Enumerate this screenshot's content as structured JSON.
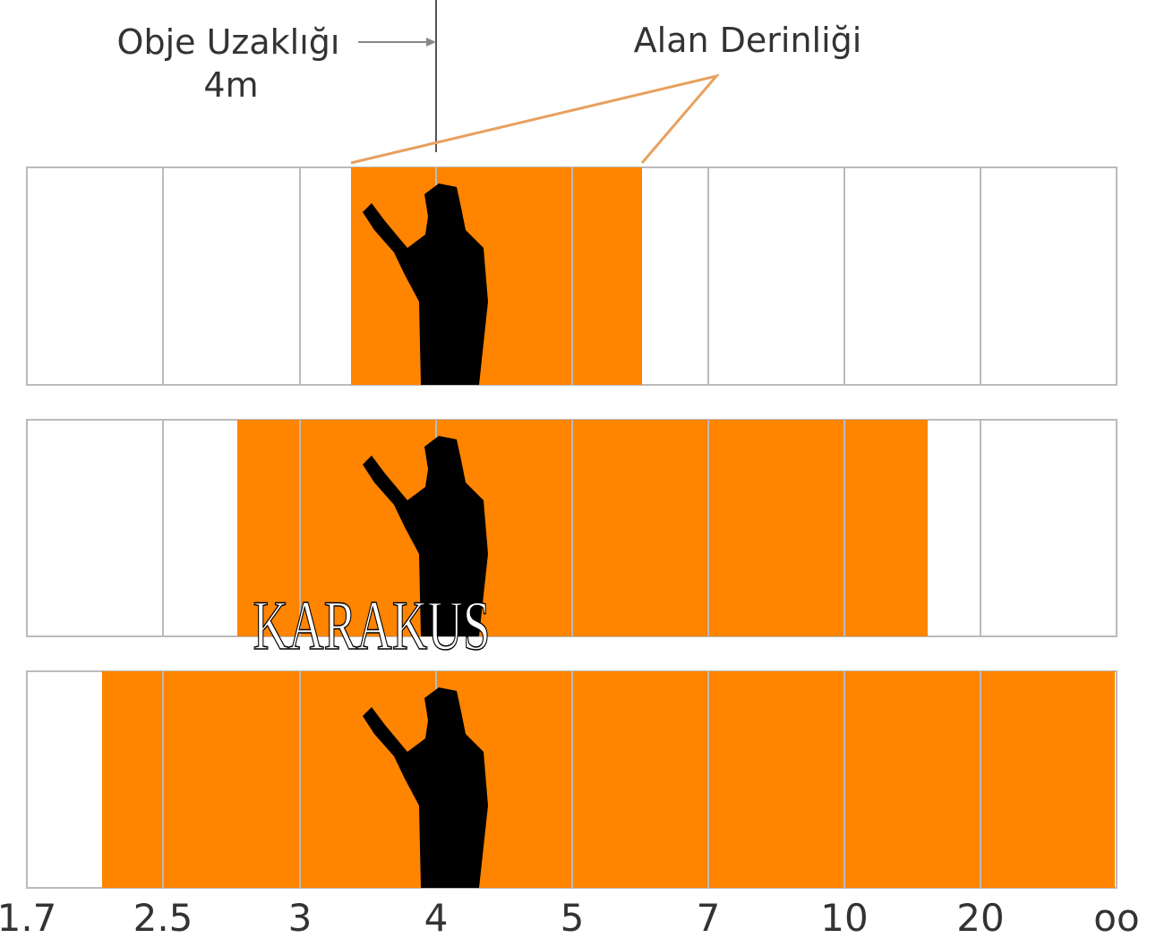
{
  "annotations": {
    "subject_distance": "Obje Uzaklığı",
    "subject_distance_value": "4m",
    "depth_of_field": "Alan Derinliği"
  },
  "scale": [
    "1.7",
    "2.5",
    "3",
    "4",
    "5",
    "7",
    "10",
    "20",
    "oo"
  ],
  "watermark": "KARAKUS"
}
